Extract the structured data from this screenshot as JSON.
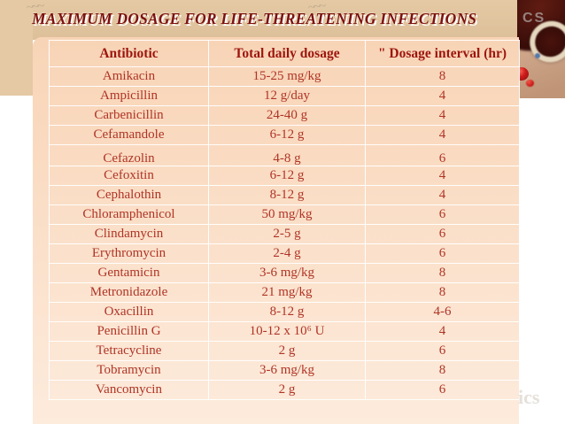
{
  "slide": {
    "title": "MAXIMUM DOSAGE FOR LIFE-THREATENING INFECTIONS",
    "watermarks": {
      "top_right": "CS",
      "bottom_right": "ics",
      "scribble": "~~~"
    },
    "colors": {
      "tan_band": "#e4c9a4",
      "tan_band_2": "#ddc09a",
      "panel_top": "#f8d4b6",
      "panel_bottom": "#fdebdc",
      "title": "#7c1110",
      "header_text": "#9d150e",
      "body_text": "#b03425",
      "photo_bg_1": "#d9b296",
      "photo_bg_2": "#bf9477",
      "bottle_dark": "#3a0d09",
      "bottle_mid": "#601c12",
      "rim": "#e6d8bf",
      "pill_red": "#cc1c1c",
      "pill_blue": "#5577aa",
      "watermark_gray": "#cfc8bd"
    }
  },
  "table": {
    "columns": [
      "Antibiotic",
      "Total daily dosage",
      "\" Dosage interval (hr)"
    ],
    "rows": [
      {
        "name": "Amikacin",
        "dose": "15-25 mg/kg",
        "interval": "8"
      },
      {
        "name": "Ampicillin",
        "dose": "12 g/day",
        "interval": "4"
      },
      {
        "name": "Carbenicillin",
        "dose": "24-40 g",
        "interval": "4"
      },
      {
        "name": "Cefamandole",
        "dose": "6-12 g",
        "interval": "4"
      },
      {
        "name": "Cefazolin",
        "dose": "4-8 g",
        "interval": "6",
        "_class": "shift-down"
      },
      {
        "name": "Cefoxitin",
        "dose": "6-12 g",
        "interval": "4"
      },
      {
        "name": "Cephalothin",
        "dose": "8-12 g",
        "interval": "4"
      },
      {
        "name": "Chloramphenicol",
        "dose": "50 mg/kg",
        "interval": "6"
      },
      {
        "name": "Clindamycin",
        "dose": "2-5 g",
        "interval": "6"
      },
      {
        "name": "Erythromycin",
        "dose": "2-4 g",
        "interval": "6"
      },
      {
        "name": "Gentamicin",
        "dose": "3-6 mg/kg",
        "interval": "8"
      },
      {
        "name": "Metronidazole",
        "dose": "21 mg/kg",
        "interval": "8"
      },
      {
        "name": "Oxacillin",
        "dose": "8-12 g",
        "interval": "4-6"
      },
      {
        "name": "Penicillin G",
        "dose": "10-12 x 10⁶ U",
        "interval": "4"
      },
      {
        "name": "Tetracycline",
        "dose": "2 g",
        "interval": "6"
      },
      {
        "name": "Tobramycin",
        "dose": "3-6 mg/kg",
        "interval": "8"
      },
      {
        "name": "Vancomycin",
        "dose": "2 g",
        "interval": "6"
      }
    ]
  }
}
